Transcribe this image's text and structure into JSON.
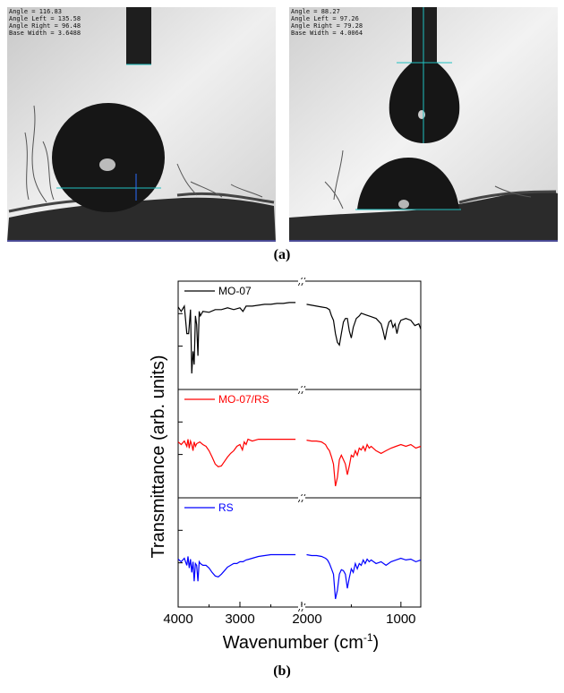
{
  "panels": {
    "a": {
      "caption": "(a)",
      "left_readout": {
        "lines": [
          "Angle = 116.83",
          "Angle Left = 135.58",
          "Angle Right = 96.48",
          "Base Width = 3.6488"
        ]
      },
      "right_readout": {
        "lines": [
          "Angle = 88.27",
          "Angle Left = 97.26",
          "Angle Right = 79.28",
          "Base Width = 4.0064"
        ]
      }
    },
    "b": {
      "caption": "(b)"
    }
  },
  "chart_data": {
    "type": "line",
    "title": "",
    "xlabel": "Wavenumber (cm",
    "xlabel_sup": "-1",
    "xlabel_end": ")",
    "ylabel": "Transmittance (arb. units)",
    "x_segments": [
      {
        "range": [
          4000,
          2000
        ],
        "ticks": [
          4000,
          3000
        ]
      },
      {
        "range": [
          2000,
          800
        ],
        "ticks": [
          2000,
          1000
        ]
      }
    ],
    "tick_labels": [
      "4000",
      "3000",
      "2000",
      "1000"
    ],
    "axis_break_marker": "//",
    "series": [
      {
        "name": "MO-07",
        "color": "#000000",
        "points": [
          [
            4000,
            0.85
          ],
          [
            3950,
            0.8
          ],
          [
            3900,
            0.86
          ],
          [
            3860,
            0.55
          ],
          [
            3830,
            0.55
          ],
          [
            3800,
            0.82
          ],
          [
            3780,
            0.1
          ],
          [
            3760,
            0.35
          ],
          [
            3740,
            0.2
          ],
          [
            3720,
            0.75
          ],
          [
            3700,
            0.65
          ],
          [
            3680,
            0.3
          ],
          [
            3660,
            0.8
          ],
          [
            3640,
            0.75
          ],
          [
            3600,
            0.8
          ],
          [
            3500,
            0.79
          ],
          [
            3400,
            0.82
          ],
          [
            3300,
            0.82
          ],
          [
            3200,
            0.84
          ],
          [
            3100,
            0.82
          ],
          [
            3000,
            0.84
          ],
          [
            2950,
            0.8
          ],
          [
            2900,
            0.86
          ],
          [
            2800,
            0.86
          ],
          [
            2700,
            0.87
          ],
          [
            2600,
            0.88
          ],
          [
            2500,
            0.88
          ],
          [
            2400,
            0.89
          ],
          [
            2300,
            0.89
          ],
          [
            2200,
            0.9
          ],
          [
            2100,
            0.9
          ],
          [
            2050,
            0.9
          ],
          [
            2000,
            0.9
          ],
          [
            1950,
            0.88
          ],
          [
            1900,
            0.87
          ],
          [
            1850,
            0.86
          ],
          [
            1800,
            0.85
          ],
          [
            1750,
            0.84
          ],
          [
            1720,
            0.82
          ],
          [
            1700,
            0.75
          ],
          [
            1680,
            0.7
          ],
          [
            1660,
            0.55
          ],
          [
            1640,
            0.45
          ],
          [
            1620,
            0.42
          ],
          [
            1600,
            0.55
          ],
          [
            1580,
            0.68
          ],
          [
            1560,
            0.72
          ],
          [
            1540,
            0.72
          ],
          [
            1520,
            0.58
          ],
          [
            1500,
            0.5
          ],
          [
            1480,
            0.62
          ],
          [
            1450,
            0.72
          ],
          [
            1420,
            0.75
          ],
          [
            1400,
            0.78
          ],
          [
            1350,
            0.76
          ],
          [
            1300,
            0.74
          ],
          [
            1250,
            0.72
          ],
          [
            1200,
            0.66
          ],
          [
            1180,
            0.58
          ],
          [
            1160,
            0.48
          ],
          [
            1140,
            0.6
          ],
          [
            1120,
            0.68
          ],
          [
            1100,
            0.7
          ],
          [
            1080,
            0.62
          ],
          [
            1060,
            0.66
          ],
          [
            1040,
            0.55
          ],
          [
            1020,
            0.65
          ],
          [
            1000,
            0.7
          ],
          [
            950,
            0.72
          ],
          [
            900,
            0.7
          ],
          [
            860,
            0.64
          ],
          [
            820,
            0.66
          ],
          [
            800,
            0.6
          ]
        ]
      },
      {
        "name": "MO-07/RS",
        "color": "#ff0000",
        "points": [
          [
            4000,
            0.55
          ],
          [
            3950,
            0.52
          ],
          [
            3900,
            0.56
          ],
          [
            3860,
            0.5
          ],
          [
            3840,
            0.58
          ],
          [
            3820,
            0.48
          ],
          [
            3800,
            0.56
          ],
          [
            3780,
            0.52
          ],
          [
            3760,
            0.45
          ],
          [
            3740,
            0.55
          ],
          [
            3720,
            0.5
          ],
          [
            3700,
            0.53
          ],
          [
            3650,
            0.55
          ],
          [
            3600,
            0.52
          ],
          [
            3550,
            0.5
          ],
          [
            3500,
            0.45
          ],
          [
            3450,
            0.38
          ],
          [
            3400,
            0.3
          ],
          [
            3350,
            0.27
          ],
          [
            3300,
            0.28
          ],
          [
            3250,
            0.33
          ],
          [
            3200,
            0.38
          ],
          [
            3150,
            0.42
          ],
          [
            3100,
            0.45
          ],
          [
            3050,
            0.5
          ],
          [
            3000,
            0.52
          ],
          [
            2960,
            0.46
          ],
          [
            2930,
            0.55
          ],
          [
            2900,
            0.52
          ],
          [
            2870,
            0.58
          ],
          [
            2800,
            0.56
          ],
          [
            2700,
            0.58
          ],
          [
            2600,
            0.58
          ],
          [
            2500,
            0.58
          ],
          [
            2400,
            0.58
          ],
          [
            2300,
            0.58
          ],
          [
            2200,
            0.58
          ],
          [
            2100,
            0.58
          ],
          [
            2000,
            0.57
          ],
          [
            1950,
            0.57
          ],
          [
            1900,
            0.56
          ],
          [
            1850,
            0.56
          ],
          [
            1800,
            0.55
          ],
          [
            1760,
            0.52
          ],
          [
            1740,
            0.48
          ],
          [
            1720,
            0.45
          ],
          [
            1700,
            0.38
          ],
          [
            1680,
            0.3
          ],
          [
            1660,
            0.05
          ],
          [
            1640,
            0.15
          ],
          [
            1620,
            0.35
          ],
          [
            1600,
            0.4
          ],
          [
            1580,
            0.35
          ],
          [
            1560,
            0.3
          ],
          [
            1540,
            0.18
          ],
          [
            1520,
            0.28
          ],
          [
            1500,
            0.4
          ],
          [
            1480,
            0.38
          ],
          [
            1460,
            0.45
          ],
          [
            1440,
            0.4
          ],
          [
            1420,
            0.48
          ],
          [
            1400,
            0.46
          ],
          [
            1380,
            0.5
          ],
          [
            1360,
            0.45
          ],
          [
            1340,
            0.52
          ],
          [
            1320,
            0.48
          ],
          [
            1300,
            0.5
          ],
          [
            1250,
            0.45
          ],
          [
            1200,
            0.42
          ],
          [
            1150,
            0.45
          ],
          [
            1100,
            0.48
          ],
          [
            1050,
            0.5
          ],
          [
            1000,
            0.52
          ],
          [
            950,
            0.5
          ],
          [
            900,
            0.52
          ],
          [
            850,
            0.48
          ],
          [
            800,
            0.5
          ]
        ]
      },
      {
        "name": "RS",
        "color": "#0000ff",
        "points": [
          [
            4000,
            0.45
          ],
          [
            3950,
            0.42
          ],
          [
            3900,
            0.46
          ],
          [
            3860,
            0.38
          ],
          [
            3840,
            0.48
          ],
          [
            3820,
            0.35
          ],
          [
            3800,
            0.45
          ],
          [
            3780,
            0.3
          ],
          [
            3760,
            0.42
          ],
          [
            3740,
            0.2
          ],
          [
            3720,
            0.4
          ],
          [
            3700,
            0.38
          ],
          [
            3680,
            0.2
          ],
          [
            3660,
            0.42
          ],
          [
            3640,
            0.4
          ],
          [
            3600,
            0.38
          ],
          [
            3550,
            0.38
          ],
          [
            3500,
            0.35
          ],
          [
            3450,
            0.3
          ],
          [
            3400,
            0.26
          ],
          [
            3350,
            0.25
          ],
          [
            3300,
            0.28
          ],
          [
            3250,
            0.32
          ],
          [
            3200,
            0.36
          ],
          [
            3150,
            0.38
          ],
          [
            3100,
            0.4
          ],
          [
            3050,
            0.4
          ],
          [
            3000,
            0.42
          ],
          [
            2950,
            0.42
          ],
          [
            2900,
            0.44
          ],
          [
            2850,
            0.45
          ],
          [
            2800,
            0.46
          ],
          [
            2700,
            0.48
          ],
          [
            2600,
            0.49
          ],
          [
            2500,
            0.5
          ],
          [
            2400,
            0.5
          ],
          [
            2300,
            0.5
          ],
          [
            2200,
            0.5
          ],
          [
            2100,
            0.5
          ],
          [
            2000,
            0.51
          ],
          [
            1950,
            0.5
          ],
          [
            1900,
            0.49
          ],
          [
            1850,
            0.49
          ],
          [
            1800,
            0.48
          ],
          [
            1760,
            0.46
          ],
          [
            1740,
            0.44
          ],
          [
            1720,
            0.4
          ],
          [
            1700,
            0.34
          ],
          [
            1680,
            0.28
          ],
          [
            1660,
            0.0
          ],
          [
            1640,
            0.1
          ],
          [
            1620,
            0.28
          ],
          [
            1600,
            0.33
          ],
          [
            1580,
            0.32
          ],
          [
            1560,
            0.28
          ],
          [
            1540,
            0.12
          ],
          [
            1520,
            0.24
          ],
          [
            1500,
            0.34
          ],
          [
            1480,
            0.3
          ],
          [
            1460,
            0.4
          ],
          [
            1440,
            0.34
          ],
          [
            1420,
            0.4
          ],
          [
            1400,
            0.38
          ],
          [
            1380,
            0.44
          ],
          [
            1360,
            0.4
          ],
          [
            1340,
            0.45
          ],
          [
            1320,
            0.42
          ],
          [
            1300,
            0.44
          ],
          [
            1250,
            0.4
          ],
          [
            1200,
            0.42
          ],
          [
            1150,
            0.38
          ],
          [
            1100,
            0.42
          ],
          [
            1050,
            0.44
          ],
          [
            1000,
            0.46
          ],
          [
            950,
            0.44
          ],
          [
            900,
            0.45
          ],
          [
            850,
            0.42
          ],
          [
            800,
            0.44
          ]
        ]
      }
    ]
  },
  "colors": {
    "photo_bg": "#d9d9d9",
    "fabric": "#2b2b2b",
    "guide_line": "#20c0c0"
  }
}
